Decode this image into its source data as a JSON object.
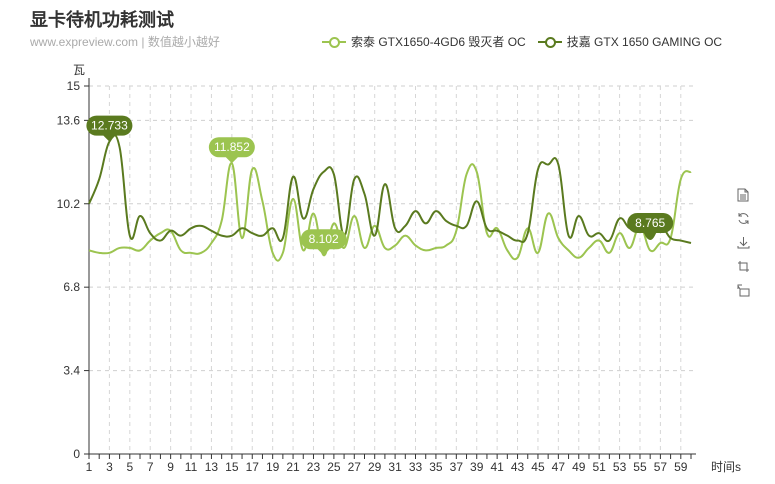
{
  "header": {
    "title": "显卡待机功耗测试",
    "subtitle": "www.expreview.com | 数值越小越好"
  },
  "legend": {
    "items": [
      {
        "name": "索泰 GTX1650-4GD6 毁灭者 OC",
        "color": "#9cc450"
      },
      {
        "name": "技嘉 GTX 1650 GAMING OC",
        "color": "#5a7a1f"
      }
    ]
  },
  "toolbox": {
    "icons": [
      "data-view-icon",
      "refresh-icon",
      "download-icon",
      "zoom-icon",
      "zoom-reset-icon"
    ]
  },
  "chart_data": {
    "type": "line",
    "ylabel": "瓦",
    "xlabel": "时间s",
    "ylim": [
      0,
      15
    ],
    "yticks": [
      0,
      3.4,
      6.8,
      10.2,
      13.6,
      15
    ],
    "x": [
      1,
      2,
      3,
      4,
      5,
      6,
      7,
      8,
      9,
      10,
      11,
      12,
      13,
      14,
      15,
      16,
      17,
      18,
      19,
      20,
      21,
      22,
      23,
      24,
      25,
      26,
      27,
      28,
      29,
      30,
      31,
      32,
      33,
      34,
      35,
      36,
      37,
      38,
      39,
      40,
      41,
      42,
      43,
      44,
      45,
      46,
      47,
      48,
      49,
      50,
      51,
      52,
      53,
      54,
      55,
      56,
      57,
      58,
      59,
      60
    ],
    "xtick_labels": [
      1,
      3,
      5,
      7,
      9,
      11,
      13,
      15,
      17,
      19,
      21,
      23,
      25,
      27,
      29,
      31,
      33,
      35,
      37,
      39,
      41,
      43,
      45,
      47,
      49,
      51,
      53,
      55,
      57,
      59
    ],
    "grid": true,
    "series": [
      {
        "name": "索泰 GTX1650-4GD6 毁灭者 OC",
        "color": "#9cc450",
        "values": [
          8.3,
          8.2,
          8.2,
          8.4,
          8.4,
          8.3,
          8.7,
          9.0,
          9.1,
          8.3,
          8.2,
          8.2,
          8.6,
          9.5,
          11.852,
          8.8,
          11.6,
          10.3,
          8.2,
          8.2,
          10.4,
          8.3,
          9.8,
          8.102,
          9.4,
          8.4,
          9.7,
          8.4,
          9.3,
          8.4,
          8.5,
          8.9,
          8.5,
          8.3,
          8.4,
          8.5,
          9.1,
          11.4,
          11.5,
          9.0,
          9.2,
          8.3,
          8.0,
          9.2,
          8.2,
          9.8,
          8.8,
          8.3,
          8.0,
          8.4,
          8.7,
          8.2,
          9.0,
          8.4,
          9.3,
          8.3,
          8.6,
          8.8,
          11.2,
          11.5
        ]
      },
      {
        "name": "技嘉 GTX 1650 GAMING OC",
        "color": "#5a7a1f",
        "values": [
          10.2,
          11.2,
          12.733,
          12.5,
          8.9,
          9.7,
          9.0,
          8.7,
          9.1,
          8.9,
          9.2,
          9.3,
          9.1,
          8.9,
          8.9,
          9.2,
          9.0,
          8.9,
          9.2,
          8.8,
          11.3,
          9.6,
          10.8,
          11.5,
          11.4,
          8.9,
          11.2,
          10.6,
          8.9,
          11.0,
          9.2,
          9.3,
          9.9,
          9.4,
          9.9,
          9.5,
          9.3,
          9.3,
          10.3,
          9.2,
          9.1,
          8.9,
          8.7,
          9.0,
          11.6,
          11.8,
          11.8,
          8.9,
          9.7,
          8.9,
          9.0,
          8.7,
          9.6,
          9.2,
          9.3,
          8.765,
          9.3,
          8.8,
          8.7,
          8.6
        ]
      }
    ],
    "annotations": [
      {
        "series": 1,
        "x": 3,
        "value": 12.733,
        "label": "12.733",
        "color": "#5a7a1f"
      },
      {
        "series": 0,
        "x": 15,
        "value": 11.852,
        "label": "11.852",
        "color": "#9cc450"
      },
      {
        "series": 0,
        "x": 24,
        "value": 8.102,
        "label": "8.102",
        "color": "#9cc450"
      },
      {
        "series": 1,
        "x": 56,
        "value": 8.765,
        "label": "8.765",
        "color": "#5a7a1f"
      }
    ]
  }
}
